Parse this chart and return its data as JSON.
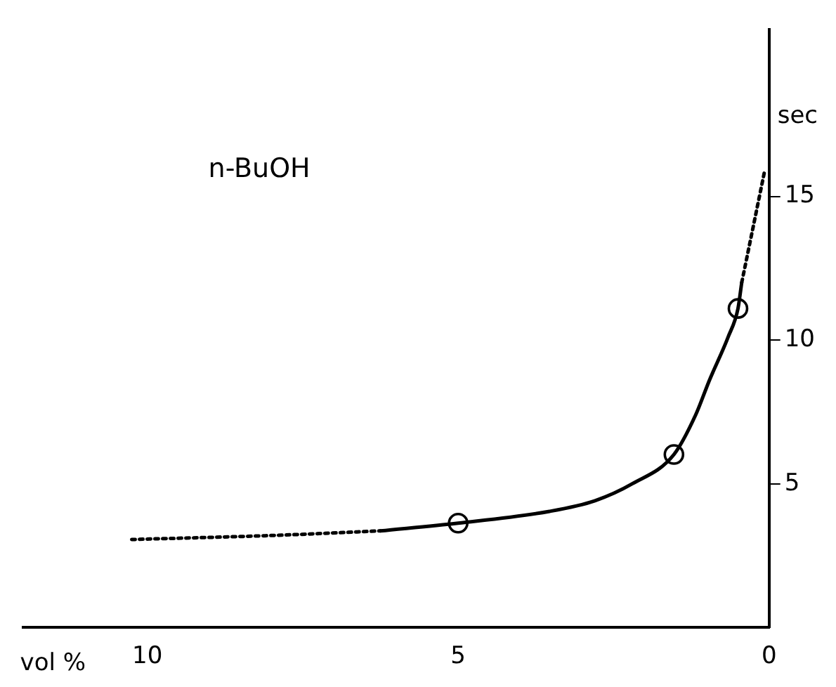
{
  "chart_data": {
    "type": "line",
    "xlabel": "vol %",
    "ylabel": "sec",
    "annotations": [
      "n-BuOH"
    ],
    "series": [
      {
        "color": "#000000",
        "line_style": "dotted",
        "x": [
          10.25,
          8,
          6.25
        ],
        "values": [
          3.06,
          3.2,
          3.36
        ]
      },
      {
        "color": "#000000",
        "line_style": "solid",
        "x": [
          6.25,
          5,
          3.53,
          2.8,
          2.2,
          1.53,
          1.18,
          0.96,
          0.66,
          0.5,
          0.44
        ],
        "values": [
          3.36,
          3.63,
          4.04,
          4.41,
          5.0,
          6.02,
          7.4,
          8.6,
          10.1,
          11.1,
          12.0
        ]
      },
      {
        "color": "#000000",
        "line_style": "dotted",
        "x": [
          0.44,
          0.25,
          0.07
        ],
        "values": [
          12.0,
          14.0,
          15.9
        ]
      },
      {
        "type": "scatter",
        "color": "#000000",
        "marker": "circle",
        "x": [
          5,
          1.53,
          0.5
        ],
        "values": [
          3.63,
          6.02,
          11.1
        ]
      }
    ],
    "xlim": [
      12,
      0
    ],
    "xticks": [
      10,
      5,
      0
    ],
    "ylim": [
      0,
      20.8
    ],
    "yticks": [
      5,
      10,
      15
    ],
    "grid": false,
    "legend": false
  }
}
